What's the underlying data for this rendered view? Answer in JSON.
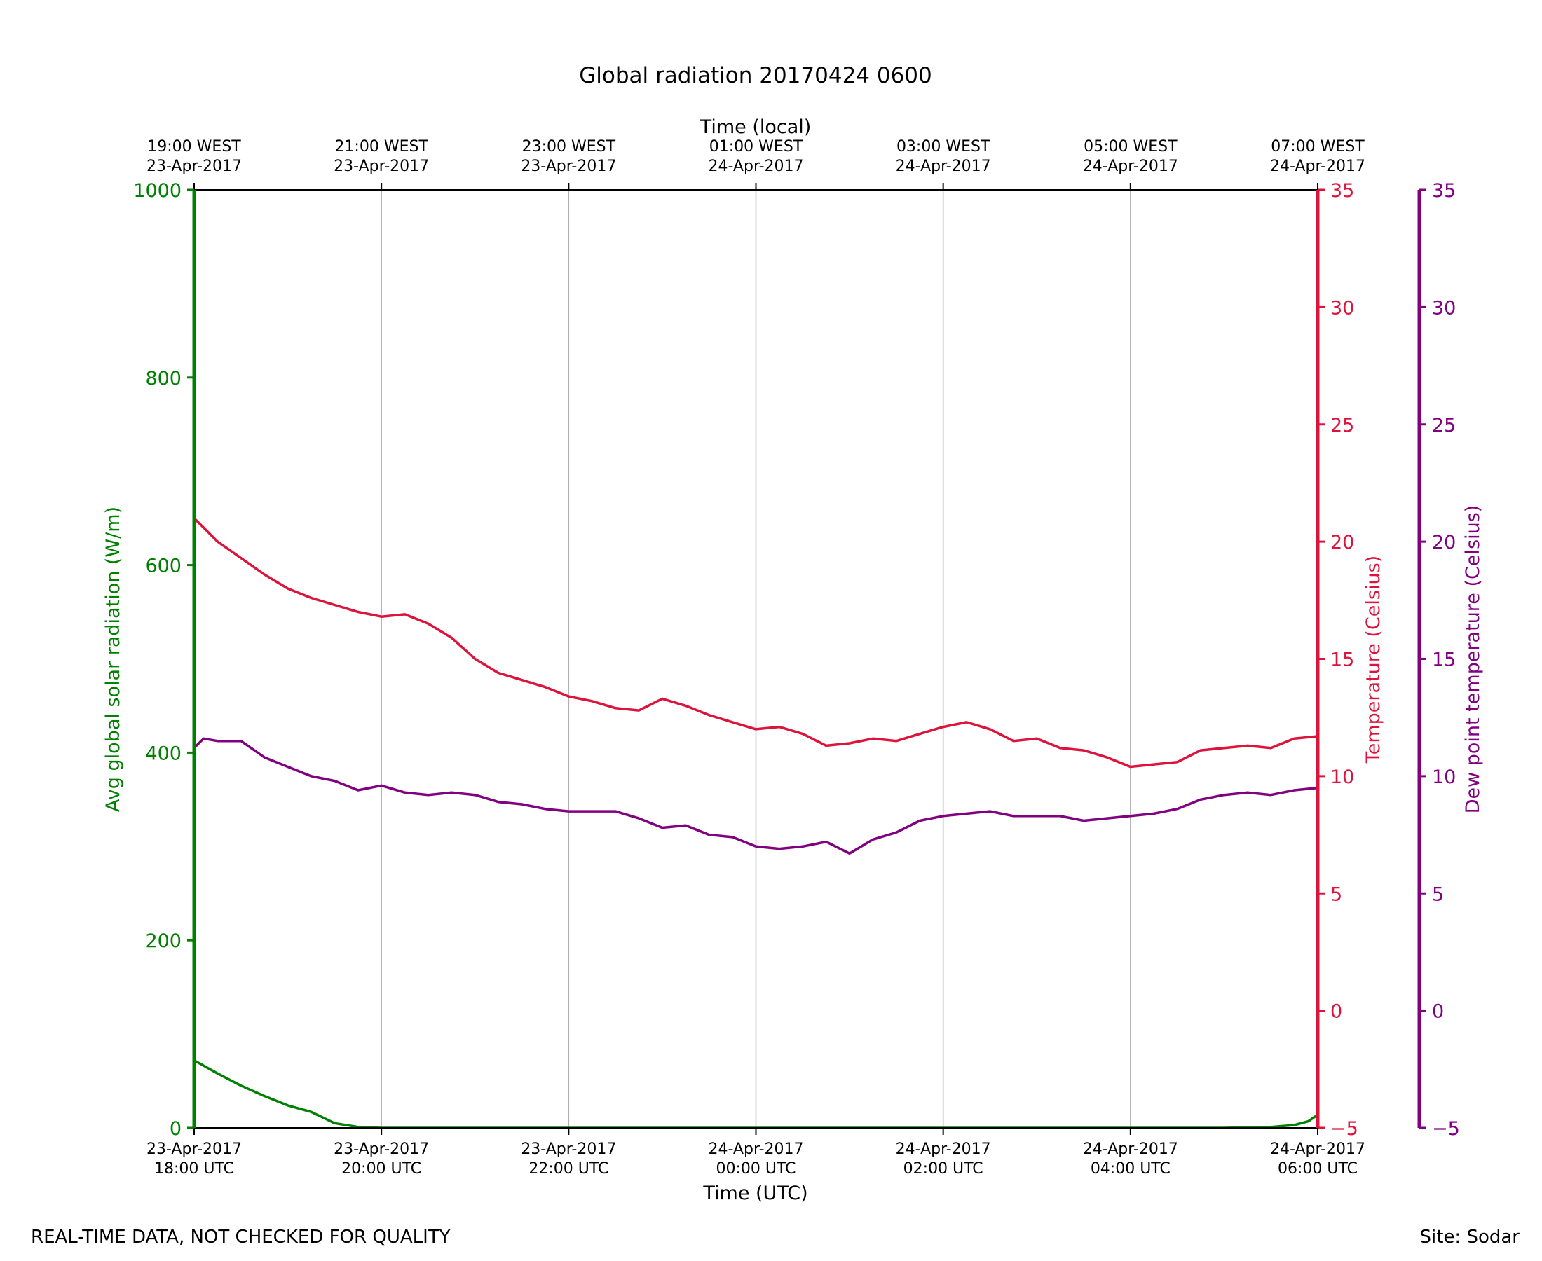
{
  "footer": {
    "left": "REAL-TIME DATA, NOT CHECKED FOR QUALITY",
    "right": "Site: Sodar"
  },
  "colors": {
    "radiation": "#008000",
    "temperature": "#dc143c",
    "dewpoint": "#800080",
    "grid": "#b0b0b0",
    "axis": "#000000"
  },
  "chart_data": {
    "type": "line",
    "title": "Global radiation 20170424 0600",
    "x_bottom_label": "Time (UTC)",
    "x_top_label": "Time (local)",
    "x_range_utc_hours": [
      0,
      12
    ],
    "x_ticks_bottom": [
      {
        "date": "23-Apr-2017",
        "time": "18:00 UTC",
        "hour": 0
      },
      {
        "date": "23-Apr-2017",
        "time": "20:00 UTC",
        "hour": 2
      },
      {
        "date": "23-Apr-2017",
        "time": "22:00 UTC",
        "hour": 4
      },
      {
        "date": "24-Apr-2017",
        "time": "00:00 UTC",
        "hour": 6
      },
      {
        "date": "24-Apr-2017",
        "time": "02:00 UTC",
        "hour": 8
      },
      {
        "date": "24-Apr-2017",
        "time": "04:00 UTC",
        "hour": 10
      },
      {
        "date": "24-Apr-2017",
        "time": "06:00 UTC",
        "hour": 12
      }
    ],
    "x_ticks_top": [
      {
        "time": "19:00 WEST",
        "date": "23-Apr-2017",
        "hour": 0
      },
      {
        "time": "21:00 WEST",
        "date": "23-Apr-2017",
        "hour": 2
      },
      {
        "time": "23:00 WEST",
        "date": "23-Apr-2017",
        "hour": 4
      },
      {
        "time": "01:00 WEST",
        "date": "24-Apr-2017",
        "hour": 6
      },
      {
        "time": "03:00 WEST",
        "date": "24-Apr-2017",
        "hour": 8
      },
      {
        "time": "05:00 WEST",
        "date": "24-Apr-2017",
        "hour": 10
      },
      {
        "time": "07:00 WEST",
        "date": "24-Apr-2017",
        "hour": 12
      }
    ],
    "y_left": {
      "label": "Avg global solar radiation (W/m)",
      "range": [
        0,
        1000
      ],
      "ticks": [
        "0",
        "200",
        "400",
        "600",
        "800",
        "1000"
      ]
    },
    "y_right1": {
      "label": "Temperature (Celsius)",
      "range": [
        -5,
        35
      ],
      "ticks": [
        "−5",
        "0",
        "5",
        "10",
        "15",
        "20",
        "25",
        "30",
        "35"
      ]
    },
    "y_right2": {
      "label": "Dew point temperature (Celsius)",
      "range": [
        -5,
        35
      ],
      "ticks": [
        "−5",
        "0",
        "5",
        "10",
        "15",
        "20",
        "25",
        "30",
        "35"
      ]
    },
    "grid": "vertical",
    "series": [
      {
        "name": "Avg global solar radiation",
        "axis": "left",
        "x": [
          0,
          0.25,
          0.5,
          0.75,
          1.0,
          1.25,
          1.5,
          1.75,
          2.0,
          3,
          4,
          5,
          6,
          7,
          8,
          9,
          10,
          11,
          11.5,
          11.75,
          11.9,
          12.0
        ],
        "y": [
          72,
          58,
          45,
          34,
          24,
          17,
          5,
          1,
          0,
          0,
          0,
          0,
          0,
          0,
          0,
          0,
          0,
          0,
          1,
          3,
          7,
          14
        ]
      },
      {
        "name": "Temperature",
        "axis": "right1",
        "x": [
          0,
          0.1,
          0.25,
          0.5,
          0.75,
          1.0,
          1.25,
          1.5,
          1.75,
          2.0,
          2.25,
          2.5,
          2.75,
          3.0,
          3.25,
          3.5,
          3.75,
          4.0,
          4.25,
          4.5,
          4.75,
          5.0,
          5.25,
          5.5,
          5.75,
          6.0,
          6.25,
          6.5,
          6.75,
          7.0,
          7.25,
          7.5,
          7.75,
          8.0,
          8.25,
          8.5,
          8.75,
          9.0,
          9.25,
          9.5,
          9.75,
          10.0,
          10.25,
          10.5,
          10.75,
          11.0,
          11.25,
          11.5,
          11.75,
          12.0
        ],
        "y": [
          21.0,
          20.6,
          20.0,
          19.3,
          18.6,
          18.0,
          17.6,
          17.3,
          17.0,
          16.8,
          16.9,
          16.5,
          15.9,
          15.0,
          14.4,
          14.1,
          13.8,
          13.4,
          13.2,
          12.9,
          12.8,
          13.3,
          13.0,
          12.6,
          12.3,
          12.0,
          12.1,
          11.8,
          11.3,
          11.4,
          11.6,
          11.5,
          11.8,
          12.1,
          12.3,
          12.0,
          11.5,
          11.6,
          11.2,
          11.1,
          10.8,
          10.4,
          10.5,
          10.6,
          11.1,
          11.2,
          11.3,
          11.2,
          11.6,
          11.7
        ]
      },
      {
        "name": "Dew point temperature",
        "axis": "right2",
        "x": [
          0,
          0.1,
          0.25,
          0.5,
          0.75,
          1.0,
          1.25,
          1.5,
          1.75,
          2.0,
          2.25,
          2.5,
          2.75,
          3.0,
          3.25,
          3.5,
          3.75,
          4.0,
          4.25,
          4.5,
          4.75,
          5.0,
          5.25,
          5.5,
          5.75,
          6.0,
          6.25,
          6.5,
          6.75,
          7.0,
          7.25,
          7.5,
          7.75,
          8.0,
          8.25,
          8.5,
          8.75,
          9.0,
          9.25,
          9.5,
          9.75,
          10.0,
          10.25,
          10.5,
          10.75,
          11.0,
          11.25,
          11.5,
          11.75,
          12.0
        ],
        "y": [
          11.2,
          11.6,
          11.5,
          11.5,
          10.8,
          10.4,
          10.0,
          9.8,
          9.4,
          9.6,
          9.3,
          9.2,
          9.3,
          9.2,
          8.9,
          8.8,
          8.6,
          8.5,
          8.5,
          8.5,
          8.2,
          7.8,
          7.9,
          7.5,
          7.4,
          7.0,
          6.9,
          7.0,
          7.2,
          6.7,
          7.3,
          7.6,
          8.1,
          8.3,
          8.4,
          8.5,
          8.3,
          8.3,
          8.3,
          8.1,
          8.2,
          8.3,
          8.4,
          8.6,
          9.0,
          9.2,
          9.3,
          9.2,
          9.4,
          9.5
        ]
      }
    ]
  }
}
